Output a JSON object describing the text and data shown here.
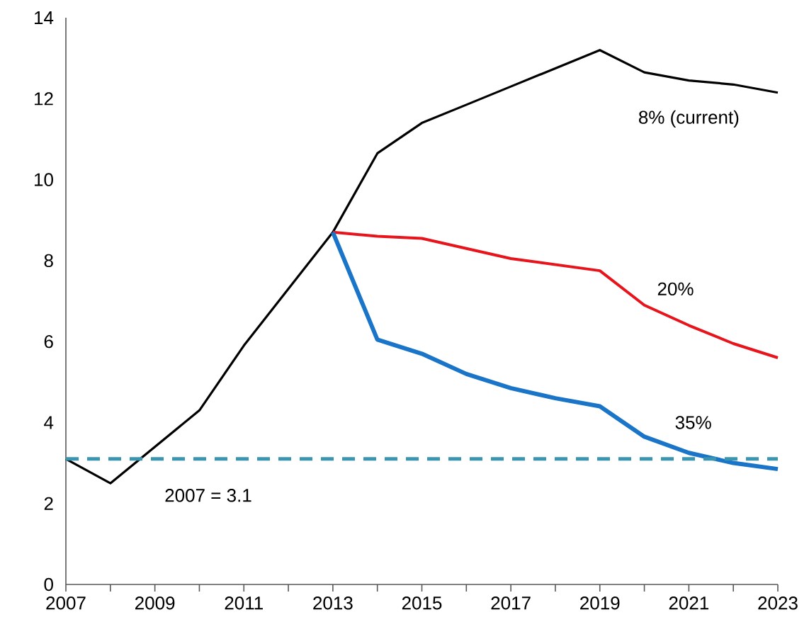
{
  "chart_data": {
    "type": "line",
    "x": [
      2007,
      2008,
      2009,
      2010,
      2011,
      2012,
      2013,
      2014,
      2015,
      2016,
      2017,
      2018,
      2019,
      2020,
      2021,
      2022,
      2023
    ],
    "series": [
      {
        "name": "8% (current)",
        "color": "#000000",
        "values": [
          3.1,
          2.5,
          3.4,
          4.3,
          5.9,
          7.3,
          8.7,
          10.65,
          11.4,
          11.85,
          12.3,
          12.75,
          13.2,
          12.65,
          12.45,
          12.35,
          12.15
        ]
      },
      {
        "name": "20%",
        "color": "#e8141b",
        "values": [
          null,
          null,
          null,
          null,
          null,
          null,
          8.7,
          8.6,
          8.55,
          8.3,
          8.05,
          7.9,
          7.75,
          6.9,
          6.4,
          5.95,
          5.6
        ]
      },
      {
        "name": "35%",
        "color": "#1a75c9",
        "values": [
          null,
          null,
          null,
          null,
          null,
          null,
          8.7,
          6.05,
          5.7,
          5.2,
          4.85,
          4.6,
          4.4,
          3.65,
          3.25,
          3.0,
          2.85
        ]
      }
    ],
    "xlim": [
      2007,
      2023
    ],
    "ylim": [
      0,
      14
    ],
    "xticks": [
      2007,
      {
        "value": 2008,
        "label": null
      },
      2009,
      {
        "value": 2010,
        "label": null
      },
      2011,
      {
        "value": 2012,
        "label": null
      },
      2013,
      {
        "value": 2014,
        "label": null
      },
      2015,
      {
        "value": 2016,
        "label": null
      },
      2017,
      {
        "value": 2018,
        "label": null
      },
      2019,
      {
        "value": 2020,
        "label": null
      },
      2021,
      {
        "value": 2022,
        "label": null
      },
      2023
    ],
    "yticks": [
      0,
      2,
      4,
      6,
      8,
      10,
      12,
      14
    ],
    "ref_lines": [
      {
        "axis": "y",
        "value": 3.1,
        "label": "2007 = 3.1",
        "color": "#3a95b0",
        "line_style": "dashed"
      }
    ],
    "marker": "none",
    "line_style": "solid"
  }
}
